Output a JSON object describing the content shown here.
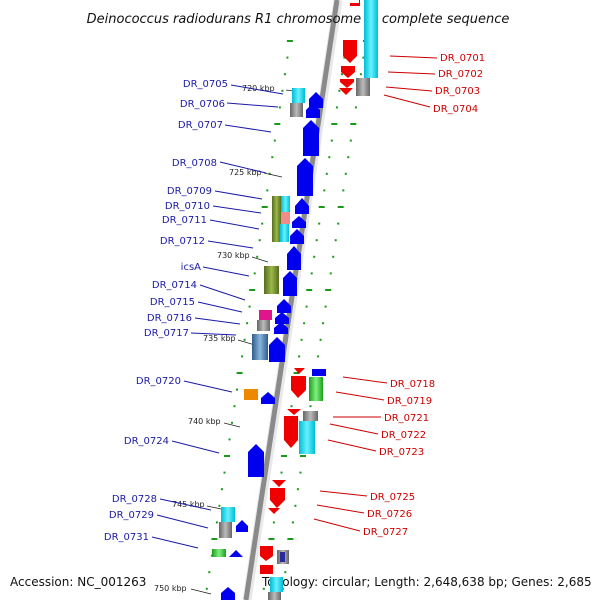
{
  "title": "Deinococcus radiodurans R1 chromosome 1, complete sequence",
  "accession": "Accession: NC_001263",
  "topology": "Topology: circular; Length: 2,648,638 bp; Genes: 2,685",
  "colors": {
    "left_label": "#1a1aa6",
    "right_label": "#cc0000",
    "forward_gene": "#0000ee",
    "reverse_gene": "#ee0000",
    "backbone": "#888888",
    "tick": "#1a9a1a"
  },
  "kbp_labels": [
    "720 kbp",
    "725 kbp",
    "730 kbp",
    "735 kbp",
    "740 kbp",
    "745 kbp",
    "750 kbp"
  ],
  "left_genes": [
    "DR_0705",
    "DR_0706",
    "DR_0707",
    "DR_0708",
    "DR_0709",
    "DR_0710",
    "DR_0711",
    "DR_0712",
    "icsA",
    "DR_0714",
    "DR_0715",
    "DR_0716",
    "DR_0717",
    "DR_0720",
    "DR_0724",
    "DR_0728",
    "DR_0729",
    "DR_0731"
  ],
  "right_genes": [
    "DR_0701",
    "DR_0702",
    "DR_0703",
    "DR_0704",
    "DR_0718",
    "DR_0719",
    "DR_0721",
    "DR_0722",
    "DR_0723",
    "DR_0725",
    "DR_0726",
    "DR_0727"
  ]
}
